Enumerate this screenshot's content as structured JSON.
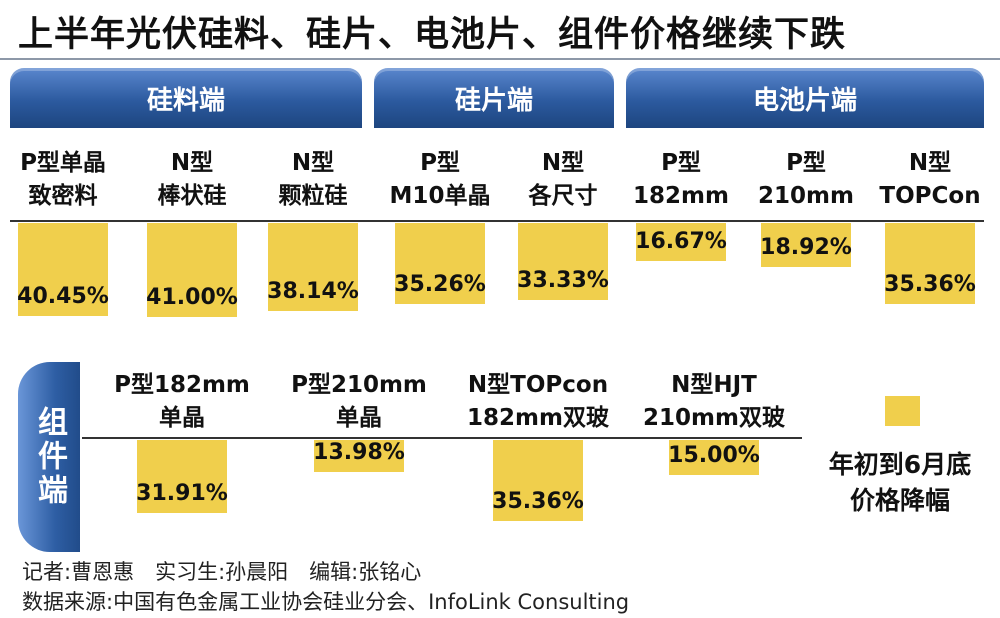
{
  "title": "上半年光伏硅料、硅片、电池片、组件价格继续下跌",
  "categories": {
    "silicon_material": "硅料端",
    "wafer": "硅片端",
    "cell": "电池片端",
    "module": "组件端"
  },
  "legend": {
    "line1": "年初到6月底",
    "line2": "价格降幅",
    "color": "#f0cf4c"
  },
  "credits": {
    "line1": "记者:曹恩惠　实习生:孙晨阳　编辑:张铭心",
    "line2": "数据来源:中国有色金属工业协会硅业分会、InfoLink Consulting"
  },
  "chart_data": [
    {
      "type": "bar",
      "section": "upstream",
      "title": "",
      "groups": [
        "硅料端",
        "硅片端",
        "电池片端"
      ],
      "categories": [
        {
          "group": 0,
          "line1": "P型单晶",
          "line2": "致密料"
        },
        {
          "group": 0,
          "line1": "N型",
          "line2": "棒状硅"
        },
        {
          "group": 0,
          "line1": "N型",
          "line2": "颗粒硅"
        },
        {
          "group": 1,
          "line1": "P型",
          "line2": "M10单晶"
        },
        {
          "group": 1,
          "line1": "N型",
          "line2": "各尺寸"
        },
        {
          "group": 2,
          "line1": "P型",
          "line2": "182mm"
        },
        {
          "group": 2,
          "line1": "P型",
          "line2": "210mm"
        },
        {
          "group": 2,
          "line1": "N型",
          "line2": "TOPCon"
        }
      ],
      "values": [
        40.45,
        41.0,
        38.14,
        35.26,
        33.33,
        16.67,
        18.92,
        35.36
      ],
      "labels": [
        "40.45%",
        "41.00%",
        "38.14%",
        "35.26%",
        "33.33%",
        "16.67%",
        "18.92%",
        "35.36%"
      ],
      "unit": "%",
      "series": [
        {
          "name": "年初到6月底价格降幅",
          "values": [
            40.45,
            41.0,
            38.14,
            35.26,
            33.33,
            16.67,
            18.92,
            35.36
          ]
        }
      ]
    },
    {
      "type": "bar",
      "section": "module",
      "title": "",
      "groups": [
        "组件端"
      ],
      "categories": [
        {
          "group": 0,
          "line1": "P型182mm",
          "line2": "单晶"
        },
        {
          "group": 0,
          "line1": "P型210mm",
          "line2": "单晶"
        },
        {
          "group": 0,
          "line1": "N型TOPcon",
          "line2": "182mm双玻"
        },
        {
          "group": 0,
          "line1": "N型HJT",
          "line2": "210mm双玻"
        }
      ],
      "values": [
        31.91,
        13.98,
        35.36,
        15.0
      ],
      "labels": [
        "31.91%",
        "13.98%",
        "35.36%",
        "15.00%"
      ],
      "unit": "%",
      "series": [
        {
          "name": "年初到6月底价格降幅",
          "values": [
            31.91,
            13.98,
            35.36,
            15.0
          ]
        }
      ]
    }
  ]
}
